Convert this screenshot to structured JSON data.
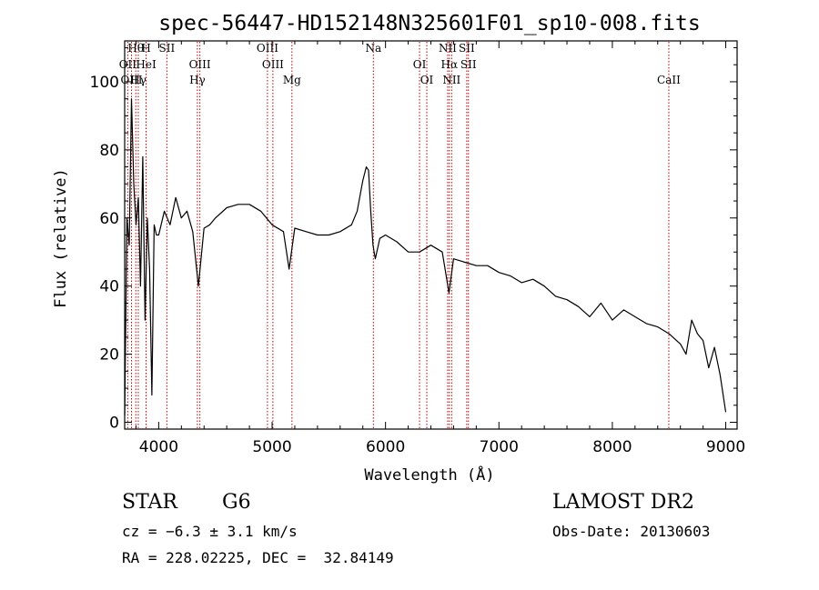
{
  "chart_data": {
    "type": "line",
    "title": "spec-56447-HD152148N325601F01_sp10-008.fits",
    "xlabel": "Wavelength (Å)",
    "ylabel": "Flux (relative)",
    "xlim": [
      3700,
      9100
    ],
    "ylim": [
      -2,
      112
    ],
    "xticks": [
      4000,
      5000,
      6000,
      7000,
      8000,
      9000
    ],
    "yticks": [
      0,
      20,
      40,
      60,
      80,
      100
    ],
    "grid": false,
    "series": [
      {
        "x": [
          3700,
          3720,
          3740,
          3760,
          3780,
          3800,
          3820,
          3840,
          3860,
          3880,
          3900,
          3920,
          3940,
          3960,
          3980,
          4000,
          4050,
          4100,
          4150,
          4200,
          4250,
          4300,
          4350,
          4400,
          4450,
          4500,
          4600,
          4700,
          4800,
          4900,
          5000,
          5100,
          5150,
          5200,
          5300,
          5400,
          5500,
          5600,
          5700,
          5750,
          5800,
          5830,
          5850,
          5870,
          5890,
          5910,
          5950,
          6000,
          6100,
          6200,
          6300,
          6400,
          6500,
          6560,
          6600,
          6700,
          6800,
          6900,
          7000,
          7100,
          7200,
          7300,
          7400,
          7500,
          7600,
          7700,
          7800,
          7900,
          8000,
          8100,
          8200,
          8300,
          8400,
          8500,
          8600,
          8650,
          8700,
          8750,
          8800,
          8850,
          8900,
          8950,
          9000
        ],
        "y": [
          2,
          60,
          52,
          95,
          70,
          58,
          66,
          40,
          78,
          30,
          60,
          45,
          8,
          58,
          55,
          55,
          62,
          58,
          66,
          60,
          62,
          56,
          40,
          57,
          58,
          60,
          63,
          64,
          64,
          62,
          58,
          56,
          45,
          57,
          56,
          55,
          55,
          56,
          58,
          62,
          71,
          75,
          74,
          62,
          52,
          48,
          54,
          55,
          53,
          50,
          50,
          52,
          50,
          38,
          48,
          47,
          46,
          46,
          44,
          43,
          41,
          42,
          40,
          37,
          36,
          34,
          31,
          35,
          30,
          33,
          31,
          29,
          28,
          26,
          23,
          20,
          30,
          26,
          24,
          16,
          22,
          14,
          3
        ]
      }
    ],
    "lines": [
      {
        "label": "Hθ",
        "x": 3798
      },
      {
        "label": "OII",
        "x": 3727
      },
      {
        "label": "OIII",
        "x": 3760
      },
      {
        "label": "H",
        "x": 3889
      },
      {
        "label": "HeI",
        "x": 3889
      },
      {
        "label": "Hγ",
        "x": 3820
      },
      {
        "label": "SII",
        "x": 4072
      },
      {
        "label": "OIII",
        "x": 4363
      },
      {
        "label": "Hγ",
        "x": 4341
      },
      {
        "label": "OIII",
        "x": 4959
      },
      {
        "label": "OIII",
        "x": 5007
      },
      {
        "label": "Mg",
        "x": 5175
      },
      {
        "label": "Na",
        "x": 5893
      },
      {
        "label": "OI",
        "x": 6300
      },
      {
        "label": "OI",
        "x": 6364
      },
      {
        "label": "NII",
        "x": 6548
      },
      {
        "label": "Hα",
        "x": 6563
      },
      {
        "label": "NII",
        "x": 6583
      },
      {
        "label": "SII",
        "x": 6716
      },
      {
        "label": "SII",
        "x": 6731
      },
      {
        "label": "CaII",
        "x": 8498
      }
    ],
    "line_color": "#c00000"
  },
  "info": {
    "class_label": "STAR",
    "subclass_label": "G6",
    "release": "LAMOST DR2",
    "cz": "cz = −6.3 ± 3.1 km/s",
    "obs_date": "Obs-Date: 20130603",
    "radec": "RA = 228.02225, DEC =  32.84149"
  }
}
